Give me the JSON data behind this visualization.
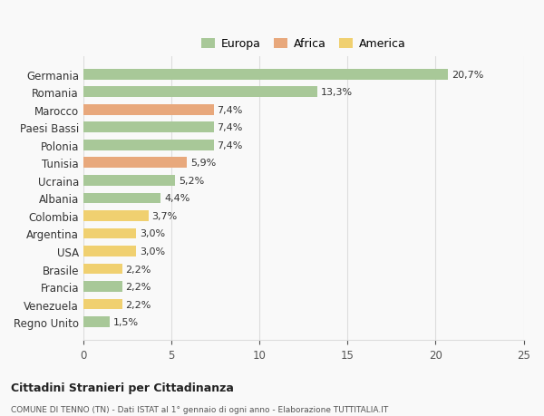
{
  "categories": [
    "Germania",
    "Romania",
    "Marocco",
    "Paesi Bassi",
    "Polonia",
    "Tunisia",
    "Ucraina",
    "Albania",
    "Colombia",
    "Argentina",
    "USA",
    "Brasile",
    "Francia",
    "Venezuela",
    "Regno Unito"
  ],
  "values": [
    20.7,
    13.3,
    7.4,
    7.4,
    7.4,
    5.9,
    5.2,
    4.4,
    3.7,
    3.0,
    3.0,
    2.2,
    2.2,
    2.2,
    1.5
  ],
  "labels": [
    "20,7%",
    "13,3%",
    "7,4%",
    "7,4%",
    "7,4%",
    "5,9%",
    "5,2%",
    "4,4%",
    "3,7%",
    "3,0%",
    "3,0%",
    "2,2%",
    "2,2%",
    "2,2%",
    "1,5%"
  ],
  "colors": [
    "#a8c898",
    "#a8c898",
    "#e8a87c",
    "#a8c898",
    "#a8c898",
    "#e8a87c",
    "#a8c898",
    "#a8c898",
    "#f0d070",
    "#f0d070",
    "#f0d070",
    "#f0d070",
    "#a8c898",
    "#f0d070",
    "#a8c898"
  ],
  "legend_labels": [
    "Europa",
    "Africa",
    "America"
  ],
  "legend_colors": [
    "#a8c898",
    "#e8a87c",
    "#f0d070"
  ],
  "xlim": [
    0,
    25
  ],
  "xticks": [
    0,
    5,
    10,
    15,
    20,
    25
  ],
  "title1": "Cittadini Stranieri per Cittadinanza",
  "title2": "COMUNE DI TENNO (TN) - Dati ISTAT al 1° gennaio di ogni anno - Elaborazione TUTTITALIA.IT",
  "bg_color": "#f9f9f9",
  "grid_color": "#dddddd",
  "bar_height": 0.6
}
